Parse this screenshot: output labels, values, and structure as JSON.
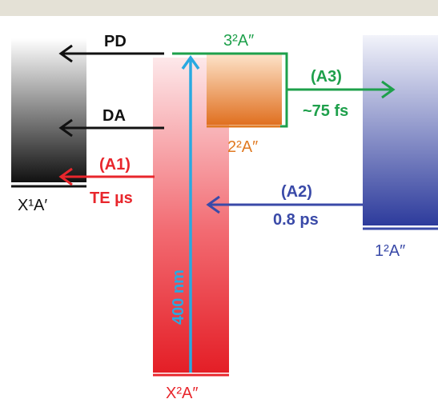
{
  "colors": {
    "top_bar": "#e4e1d6",
    "black": "#111111",
    "red": "#e8262c",
    "blue": "#3a4aa8",
    "green": "#1ea04b",
    "orange": "#e07a22",
    "cyan": "#29a9e1"
  },
  "states": {
    "ground": "X¹A′",
    "excited": "X²A″",
    "state_2A2": "2²A″",
    "state_3A2": "3²A″",
    "state_1A2": "1²A″"
  },
  "processes": {
    "pd": "PD",
    "da": "DA",
    "a1_label": "(A1)",
    "a1_time": "TE µs",
    "a2_label": "(A2)",
    "a2_time": "0.8 ps",
    "a3_label": "(A3)",
    "a3_time": "~75 fs",
    "excitation": "400 nm"
  }
}
